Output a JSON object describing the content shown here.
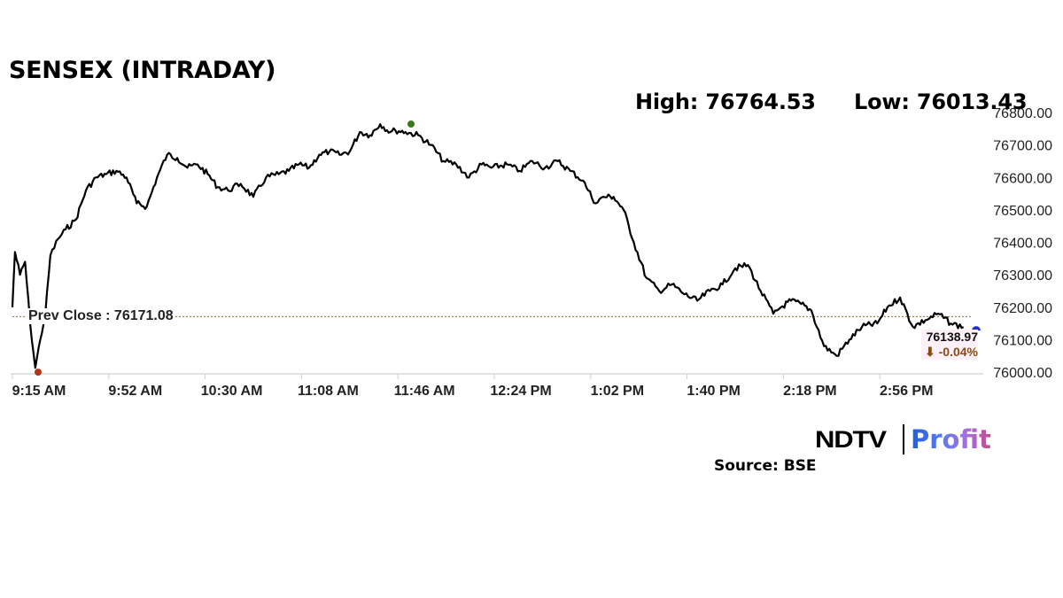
{
  "header": {
    "title": "SENSEX (INTRADAY)",
    "high_label": "High: 76764.53",
    "low_label": "Low: 76013.43"
  },
  "prev_close": {
    "label": "Prev Close : 76171.08",
    "value": 76171.08
  },
  "last": {
    "value": "76138.97",
    "change": "⬇ -0.04%"
  },
  "footer": {
    "brand_left": "NDTV",
    "brand_right": "Profit",
    "source": "Source: BSE"
  },
  "colors": {
    "line": "#000000",
    "prev_close_line": "#8b6a3e",
    "low_marker": "#b0361b",
    "high_marker": "#3a7a1a",
    "last_marker": "#1f2fd6",
    "change_text": "#8a4a14",
    "axis": "#d9d9d9"
  },
  "chart_data": {
    "type": "line",
    "title": "SENSEX (INTRADAY)",
    "xlabel": "",
    "ylabel": "",
    "ylim": [
      76000,
      76800
    ],
    "grid": false,
    "legend": null,
    "y_ticks": [
      "76800.00",
      "76700.00",
      "76600.00",
      "76500.00",
      "76400.00",
      "76300.00",
      "76200.00",
      "76100.00",
      "76000.00"
    ],
    "x_ticks": [
      "9:15 AM",
      "9:52 AM",
      "10:30 AM",
      "11:08 AM",
      "11:46 AM",
      "12:24 PM",
      "1:02 PM",
      "1:40 PM",
      "2:18 PM",
      "2:56 PM"
    ],
    "annotations": {
      "high": 76764.53,
      "low": 76013.43,
      "prev_close": 76171.08,
      "last": 76138.97,
      "change_pct": -0.04
    },
    "series": [
      {
        "name": "SENSEX",
        "x": [
          "9:15",
          "9:16",
          "9:18",
          "9:20",
          "9:22",
          "9:24",
          "9:26",
          "9:28",
          "9:30",
          "9:33",
          "9:36",
          "9:40",
          "9:44",
          "9:48",
          "9:52",
          "9:56",
          "10:00",
          "10:04",
          "10:08",
          "10:12",
          "10:16",
          "10:20",
          "10:24",
          "10:28",
          "10:32",
          "10:36",
          "10:40",
          "10:45",
          "10:50",
          "10:55",
          "11:00",
          "11:04",
          "11:08",
          "11:12",
          "11:16",
          "11:20",
          "11:24",
          "11:28",
          "11:32",
          "11:36",
          "11:40",
          "11:44",
          "11:46",
          "11:50",
          "11:55",
          "12:00",
          "12:05",
          "12:10",
          "12:15",
          "12:20",
          "12:24",
          "12:30",
          "12:35",
          "12:40",
          "12:45",
          "12:50",
          "12:55",
          "1:00",
          "1:02",
          "1:05",
          "1:08",
          "1:12",
          "1:16",
          "1:20",
          "1:25",
          "1:30",
          "1:35",
          "1:40",
          "1:45",
          "1:50",
          "1:55",
          "2:00",
          "2:05",
          "2:10",
          "2:15",
          "2:18",
          "2:22",
          "2:26",
          "2:30",
          "2:35",
          "2:40",
          "2:45",
          "2:50",
          "2:56",
          "3:00",
          "3:05",
          "3:10",
          "3:15",
          "3:20",
          "3:25",
          "3:30"
        ],
        "values": [
          76200,
          76370,
          76300,
          76340,
          76150,
          76013,
          76100,
          76180,
          76360,
          76410,
          76440,
          76470,
          76560,
          76600,
          76610,
          76620,
          76600,
          76520,
          76510,
          76600,
          76670,
          76660,
          76630,
          76640,
          76610,
          76570,
          76560,
          76580,
          76540,
          76600,
          76610,
          76620,
          76640,
          76630,
          76670,
          76680,
          76670,
          76680,
          76740,
          76730,
          76764,
          76740,
          76745,
          76740,
          76730,
          76700,
          76650,
          76640,
          76600,
          76640,
          76630,
          76640,
          76620,
          76650,
          76630,
          76650,
          76620,
          76590,
          76560,
          76520,
          76540,
          76540,
          76500,
          76400,
          76290,
          76250,
          76270,
          76240,
          76220,
          76250,
          76270,
          76320,
          76330,
          76250,
          76180,
          76200,
          76220,
          76210,
          76190,
          76080,
          76050,
          76100,
          76140,
          76150,
          76200,
          76230,
          76140,
          76160,
          76180,
          76150,
          76138.97
        ]
      }
    ]
  }
}
